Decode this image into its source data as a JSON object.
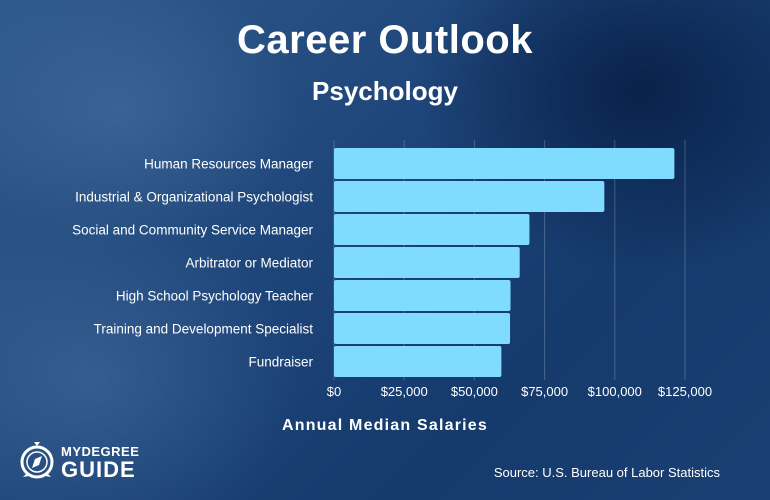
{
  "chart_data": {
    "type": "bar",
    "orientation": "horizontal",
    "title": "Career Outlook",
    "subtitle": "Psychology",
    "categories": [
      "Human Resources Manager",
      "Industrial & Organizational Psychologist",
      "Social and Community Service Manager",
      "Arbitrator or Mediator",
      "High School Psychology Teacher",
      "Training and Development Specialist",
      "Fundraiser"
    ],
    "values": [
      121220,
      96270,
      69600,
      66130,
      62870,
      62700,
      59610
    ],
    "xlabel": "Annual Median Salaries",
    "xlim": [
      0,
      125000
    ],
    "xticks": [
      0,
      25000,
      50000,
      75000,
      100000,
      125000
    ],
    "xtick_labels": [
      "$0",
      "$25,000",
      "$50,000",
      "$75,000",
      "$100,000",
      "$125,000"
    ],
    "grid": true,
    "bar_color": "#7fdcff"
  },
  "logo": {
    "line1": "MYDEGREE",
    "line2": "GUIDE"
  },
  "source": "Source: U.S. Bureau of Labor Statistics"
}
